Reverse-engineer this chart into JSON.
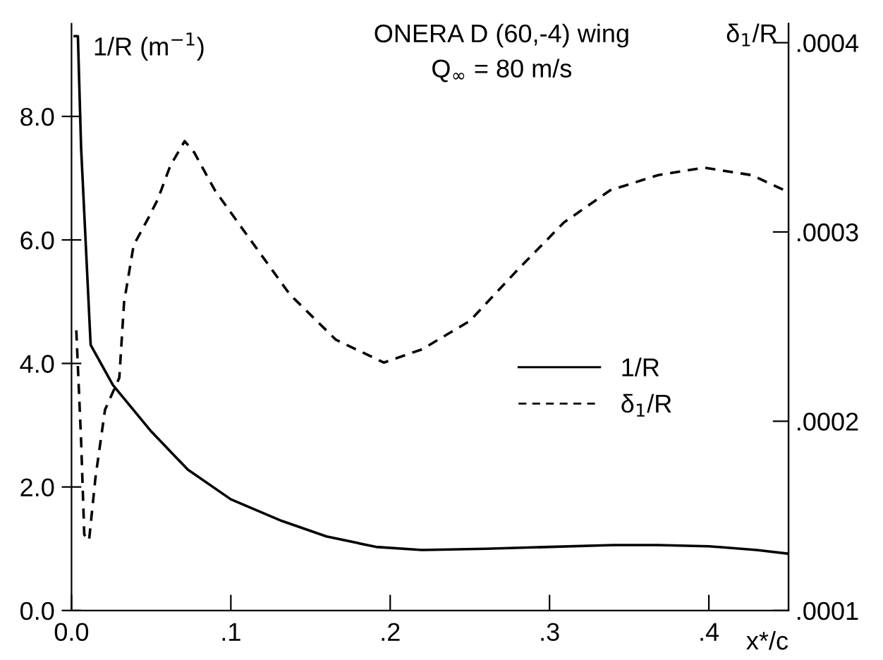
{
  "chart_data": {
    "type": "line",
    "title": "ONERA D (60,-4) wing",
    "subtitle": "Q$_{∞}$ = 80 m/s",
    "xlabel": "x*/c",
    "ylabel": "1/R (m$^{−1}$)",
    "y2label": "δ$_{1}$/R",
    "xlim": [
      0,
      0.45
    ],
    "xticks": [
      {
        "value": 0,
        "label": "0.0"
      },
      {
        "value": 0.1,
        "label": ".1"
      },
      {
        "value": 0.2,
        "label": ".2"
      },
      {
        "value": 0.3,
        "label": ".3"
      },
      {
        "value": 0.4,
        "label": ".4"
      }
    ],
    "ylim": [
      0,
      9.5
    ],
    "yticks": [
      {
        "value": 0,
        "label": "0.0"
      },
      {
        "value": 2,
        "label": "2.0"
      },
      {
        "value": 4,
        "label": "4.0"
      },
      {
        "value": 6,
        "label": "6.0"
      },
      {
        "value": 8,
        "label": "8.0"
      }
    ],
    "y2lim": [
      0.0001,
      0.00041
    ],
    "y2ticks": [
      {
        "value": 0.0001,
        "label": ".0001"
      },
      {
        "value": 0.0002,
        "label": ".0002"
      },
      {
        "value": 0.0003,
        "label": ".0003"
      },
      {
        "value": 0.0004,
        "label": ".0004"
      }
    ],
    "grid": false,
    "legend": "right",
    "marker": "none",
    "series": [
      {
        "name": "1/R",
        "color": "#000000",
        "line_style": "solid",
        "x": [
          0.002,
          0.004,
          0.006,
          0.012,
          0.026,
          0.05,
          0.073,
          0.1,
          0.132,
          0.16,
          0.191,
          0.22,
          0.26,
          0.3,
          0.34,
          0.368,
          0.4,
          0.43,
          0.45
        ],
        "values": [
          9.3,
          9.3,
          7.5,
          4.3,
          3.65,
          2.9,
          2.28,
          1.8,
          1.45,
          1.2,
          1.03,
          0.98,
          1.0,
          1.03,
          1.06,
          1.06,
          1.04,
          0.98,
          0.92
        ]
      },
      {
        "name": "δ$_{1}$/R",
        "color": "#000000",
        "line_style": "dashed",
        "axis": "y2",
        "x": [
          0.003,
          0.006,
          0.008,
          0.011,
          0.015,
          0.021,
          0.03,
          0.033,
          0.039,
          0.048,
          0.054,
          0.062,
          0.071,
          0.077,
          0.09,
          0.107,
          0.137,
          0.166,
          0.196,
          0.22,
          0.238,
          0.25,
          0.28,
          0.309,
          0.338,
          0.368,
          0.397,
          0.427,
          0.45
        ],
        "values": [
          0.000248,
          0.00019,
          0.00014,
          0.000137,
          0.00017,
          0.000206,
          0.000223,
          0.000263,
          0.000293,
          0.000307,
          0.000317,
          0.000335,
          0.000348,
          0.000342,
          0.000322,
          0.000302,
          0.000267,
          0.000243,
          0.000231,
          0.000238,
          0.000247,
          0.000253,
          0.00028,
          0.000305,
          0.000322,
          0.00033,
          0.000334,
          0.00033,
          0.000321
        ]
      }
    ]
  }
}
